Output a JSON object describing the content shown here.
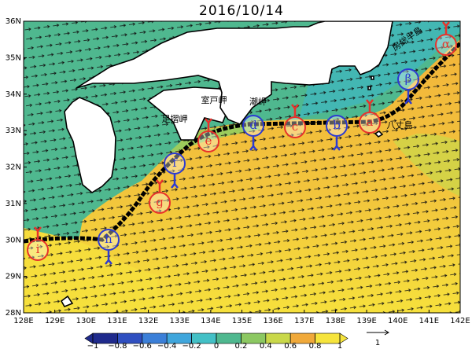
{
  "title": "2016/10/14",
  "map": {
    "xticks": [
      {
        "value": 128,
        "label": "128E"
      },
      {
        "value": 129,
        "label": "129E"
      },
      {
        "value": 130,
        "label": "130E"
      },
      {
        "value": 131,
        "label": "131E"
      },
      {
        "value": 132,
        "label": "132E"
      },
      {
        "value": 133,
        "label": "133E"
      },
      {
        "value": 134,
        "label": "134E"
      },
      {
        "value": 135,
        "label": "135E"
      },
      {
        "value": 136,
        "label": "136E"
      },
      {
        "value": 137,
        "label": "137E"
      },
      {
        "value": 138,
        "label": "138E"
      },
      {
        "value": 139,
        "label": "139E"
      },
      {
        "value": 140,
        "label": "140E"
      },
      {
        "value": 141,
        "label": "141E"
      },
      {
        "value": 142,
        "label": "142E"
      }
    ],
    "yticks": [
      {
        "value": 28,
        "label": "28N"
      },
      {
        "value": 29,
        "label": "29N"
      },
      {
        "value": 30,
        "label": "30N"
      },
      {
        "value": 31,
        "label": "31N"
      },
      {
        "value": 32,
        "label": "32N"
      },
      {
        "value": 33,
        "label": "33N"
      },
      {
        "value": 34,
        "label": "34N"
      },
      {
        "value": 35,
        "label": "35N"
      },
      {
        "value": 36,
        "label": "36N"
      }
    ],
    "places": [
      "足摺岬",
      "室戸岬",
      "潮岬",
      "八丈島",
      "房総半島"
    ],
    "markers": [
      {
        "label": "α",
        "color": "#e8322b"
      },
      {
        "label": "β",
        "color": "#2d3bd1"
      },
      {
        "label": "a",
        "color": "#e8322b"
      },
      {
        "label": "b",
        "color": "#2d3bd1"
      },
      {
        "label": "c",
        "color": "#e8322b"
      },
      {
        "label": "d",
        "color": "#2d3bd1"
      },
      {
        "label": "e",
        "color": "#e8322b"
      },
      {
        "label": "f",
        "color": "#2d3bd1"
      },
      {
        "label": "g",
        "color": "#e8322b"
      },
      {
        "label": "h",
        "color": "#2d3bd1"
      },
      {
        "label": "i",
        "color": "#e8322b"
      }
    ]
  },
  "colorbar": {
    "ticks": [
      {
        "value": -1,
        "label": "−1"
      },
      {
        "value": -0.8,
        "label": "−0.8"
      },
      {
        "value": -0.6,
        "label": "−0.6"
      },
      {
        "value": -0.4,
        "label": "−0.4"
      },
      {
        "value": -0.2,
        "label": "−0.2"
      },
      0,
      0.2,
      0.4,
      0.6,
      0.8,
      1
    ],
    "colors": [
      "#1f2a8c",
      "#2f4fc0",
      "#3b7fd8",
      "#3fa6dc",
      "#43c0c6",
      "#4fb88f",
      "#8cc862",
      "#c9d84a",
      "#f0a93a",
      "#f6e43c"
    ]
  },
  "vector_scale": 1
}
